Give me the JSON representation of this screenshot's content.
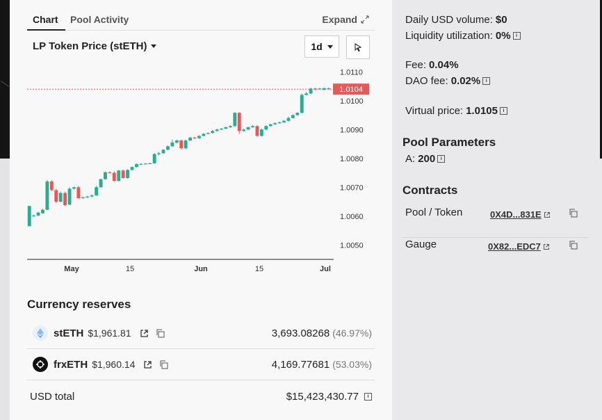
{
  "tabs": {
    "chart": "Chart",
    "pool_activity": "Pool Activity",
    "expand": "Expand"
  },
  "price_selector": {
    "label": "LP Token Price (stETH)",
    "period": "1d"
  },
  "chart_data": {
    "type": "candlestick",
    "x_ticks": [
      "May",
      "15",
      "Jun",
      "15",
      "Jul"
    ],
    "y_ticks": [
      "1.0110",
      "1.0100",
      "1.0090",
      "1.0080",
      "1.0070",
      "1.0060",
      "1.0050"
    ],
    "ylim": [
      1.0045,
      1.0112
    ],
    "current_price": "1.0104",
    "colors": {
      "up": "#2bab8f",
      "down": "#e35a5a",
      "price_line": "#e35a5a"
    },
    "candles": [
      {
        "o": 1.00565,
        "c": 1.00635,
        "h": 1.00635,
        "l": 1.00565
      },
      {
        "o": 1.006,
        "c": 1.00602,
        "h": 1.00605,
        "l": 1.00598
      },
      {
        "o": 1.00602,
        "c": 1.00612,
        "h": 1.00615,
        "l": 1.006
      },
      {
        "o": 1.0061,
        "c": 1.00622,
        "h": 1.00625,
        "l": 1.00608
      },
      {
        "o": 1.00622,
        "c": 1.0072,
        "h": 1.00725,
        "l": 1.0062
      },
      {
        "o": 1.0072,
        "c": 1.0069,
        "h": 1.00725,
        "l": 1.00688
      },
      {
        "o": 1.0069,
        "c": 1.0065,
        "h": 1.00695,
        "l": 1.00645
      },
      {
        "o": 1.0065,
        "c": 1.0068,
        "h": 1.00685,
        "l": 1.00648
      },
      {
        "o": 1.0068,
        "c": 1.00638,
        "h": 1.00685,
        "l": 1.00635
      },
      {
        "o": 1.0064,
        "c": 1.00695,
        "h": 1.007,
        "l": 1.00638
      },
      {
        "o": 1.00695,
        "c": 1.007,
        "h": 1.00702,
        "l": 1.00692
      },
      {
        "o": 1.007,
        "c": 1.00662,
        "h": 1.00705,
        "l": 1.0066
      },
      {
        "o": 1.00662,
        "c": 1.00665,
        "h": 1.00668,
        "l": 1.0066
      },
      {
        "o": 1.00665,
        "c": 1.00668,
        "h": 1.0067,
        "l": 1.00662
      },
      {
        "o": 1.00668,
        "c": 1.00672,
        "h": 1.00675,
        "l": 1.00665
      },
      {
        "o": 1.00672,
        "c": 1.007,
        "h": 1.00705,
        "l": 1.0067
      },
      {
        "o": 1.007,
        "c": 1.00728,
        "h": 1.0073,
        "l": 1.00698
      },
      {
        "o": 1.00728,
        "c": 1.00752,
        "h": 1.00755,
        "l": 1.00726
      },
      {
        "o": 1.00752,
        "c": 1.0075,
        "h": 1.00755,
        "l": 1.00748
      },
      {
        "o": 1.0075,
        "c": 1.00722,
        "h": 1.00755,
        "l": 1.0072
      },
      {
        "o": 1.00722,
        "c": 1.00758,
        "h": 1.0076,
        "l": 1.0072
      },
      {
        "o": 1.00758,
        "c": 1.00732,
        "h": 1.00762,
        "l": 1.0073
      },
      {
        "o": 1.00732,
        "c": 1.0076,
        "h": 1.00762,
        "l": 1.0073
      },
      {
        "o": 1.0076,
        "c": 1.0077,
        "h": 1.00772,
        "l": 1.00758
      },
      {
        "o": 1.0077,
        "c": 1.0078,
        "h": 1.00782,
        "l": 1.00768
      },
      {
        "o": 1.0078,
        "c": 1.00781,
        "h": 1.00783,
        "l": 1.00778
      },
      {
        "o": 1.00781,
        "c": 1.00782,
        "h": 1.00784,
        "l": 1.00779
      },
      {
        "o": 1.00782,
        "c": 1.00783,
        "h": 1.00785,
        "l": 1.0078
      },
      {
        "o": 1.00783,
        "c": 1.00815,
        "h": 1.00818,
        "l": 1.00781
      },
      {
        "o": 1.00815,
        "c": 1.00818,
        "h": 1.00822,
        "l": 1.0081
      },
      {
        "o": 1.00818,
        "c": 1.0083,
        "h": 1.00832,
        "l": 1.00815
      },
      {
        "o": 1.0083,
        "c": 1.00842,
        "h": 1.00845,
        "l": 1.00828
      },
      {
        "o": 1.00842,
        "c": 1.00855,
        "h": 1.00865,
        "l": 1.0084
      },
      {
        "o": 1.00855,
        "c": 1.00862,
        "h": 1.00865,
        "l": 1.00852
      },
      {
        "o": 1.00862,
        "c": 1.00835,
        "h": 1.00865,
        "l": 1.00832
      },
      {
        "o": 1.00835,
        "c": 1.00862,
        "h": 1.00865,
        "l": 1.00832
      },
      {
        "o": 1.00862,
        "c": 1.00872,
        "h": 1.00875,
        "l": 1.0086
      },
      {
        "o": 1.00872,
        "c": 1.0087,
        "h": 1.00875,
        "l": 1.00868
      },
      {
        "o": 1.0087,
        "c": 1.00878,
        "h": 1.0088,
        "l": 1.00868
      },
      {
        "o": 1.00878,
        "c": 1.00885,
        "h": 1.00888,
        "l": 1.00876
      },
      {
        "o": 1.00885,
        "c": 1.00888,
        "h": 1.0089,
        "l": 1.00883
      },
      {
        "o": 1.00888,
        "c": 1.00895,
        "h": 1.00898,
        "l": 1.00886
      },
      {
        "o": 1.00895,
        "c": 1.009,
        "h": 1.00903,
        "l": 1.00893
      },
      {
        "o": 1.009,
        "c": 1.00903,
        "h": 1.00905,
        "l": 1.00898
      },
      {
        "o": 1.00903,
        "c": 1.00908,
        "h": 1.0091,
        "l": 1.00901
      },
      {
        "o": 1.00908,
        "c": 1.00912,
        "h": 1.00915,
        "l": 1.00906
      },
      {
        "o": 1.00912,
        "c": 1.00958,
        "h": 1.0096,
        "l": 1.0091
      },
      {
        "o": 1.00958,
        "c": 1.00895,
        "h": 1.0096,
        "l": 1.00885
      },
      {
        "o": 1.00895,
        "c": 1.009,
        "h": 1.00903,
        "l": 1.00892
      },
      {
        "o": 1.009,
        "c": 1.00908,
        "h": 1.0091,
        "l": 1.00898
      },
      {
        "o": 1.00908,
        "c": 1.00912,
        "h": 1.00915,
        "l": 1.00906
      },
      {
        "o": 1.00912,
        "c": 1.00878,
        "h": 1.00915,
        "l": 1.00875
      },
      {
        "o": 1.00878,
        "c": 1.009,
        "h": 1.00903,
        "l": 1.00876
      },
      {
        "o": 1.009,
        "c": 1.00912,
        "h": 1.00915,
        "l": 1.00898
      },
      {
        "o": 1.00912,
        "c": 1.00918,
        "h": 1.0092,
        "l": 1.0091
      },
      {
        "o": 1.00918,
        "c": 1.00922,
        "h": 1.00925,
        "l": 1.00916
      },
      {
        "o": 1.00922,
        "c": 1.00925,
        "h": 1.00928,
        "l": 1.0092
      },
      {
        "o": 1.00925,
        "c": 1.0093,
        "h": 1.00933,
        "l": 1.00923
      },
      {
        "o": 1.0093,
        "c": 1.0094,
        "h": 1.00945,
        "l": 1.00928
      },
      {
        "o": 1.0094,
        "c": 1.0095,
        "h": 1.00953,
        "l": 1.00938
      },
      {
        "o": 1.0095,
        "c": 1.00958,
        "h": 1.0096,
        "l": 1.00948
      },
      {
        "o": 1.00958,
        "c": 1.0102,
        "h": 1.01025,
        "l": 1.00956
      },
      {
        "o": 1.0102,
        "c": 1.01025,
        "h": 1.0103,
        "l": 1.01018
      },
      {
        "o": 1.01025,
        "c": 1.01042,
        "h": 1.01045,
        "l": 1.01022
      },
      {
        "o": 1.01042,
        "c": 1.0104,
        "h": 1.01045,
        "l": 1.01036
      },
      {
        "o": 1.0104,
        "c": 1.01042,
        "h": 1.01045,
        "l": 1.01038
      },
      {
        "o": 1.01038,
        "c": 1.01043,
        "h": 1.01046,
        "l": 1.01036
      },
      {
        "o": 1.01043,
        "c": 1.0104,
        "h": 1.01046,
        "l": 1.01038
      }
    ]
  },
  "reserves": {
    "title": "Currency reserves",
    "items": [
      {
        "name": "stETH",
        "price": "$1,961.81",
        "amount": "3,693.08268",
        "pct": "(46.97%)",
        "icon": "steth-icon"
      },
      {
        "name": "frxETH",
        "price": "$1,960.14",
        "amount": "4,169.77681",
        "pct": "(53.03%)",
        "icon": "frxeth-icon"
      }
    ],
    "usd_total_label": "USD total",
    "usd_total_value": "$15,423,430.77"
  },
  "stats": {
    "daily_volume_label": "Daily USD volume:",
    "daily_volume_value": "$0",
    "liq_label": "Liquidity utilization:",
    "liq_value": "0%",
    "fee_label": "Fee:",
    "fee_value": "0.04%",
    "dao_fee_label": "DAO fee:",
    "dao_fee_value": "0.02%",
    "virtual_price_label": "Virtual price:",
    "virtual_price_value": "1.0105"
  },
  "pool_parameters": {
    "title": "Pool Parameters",
    "a_label": "A:",
    "a_value": "200"
  },
  "contracts": {
    "title": "Contracts",
    "items": [
      {
        "label": "Pool / Token",
        "address": "0X4D...831E"
      },
      {
        "label": "Gauge",
        "address": "0X82...EDC7"
      }
    ]
  }
}
